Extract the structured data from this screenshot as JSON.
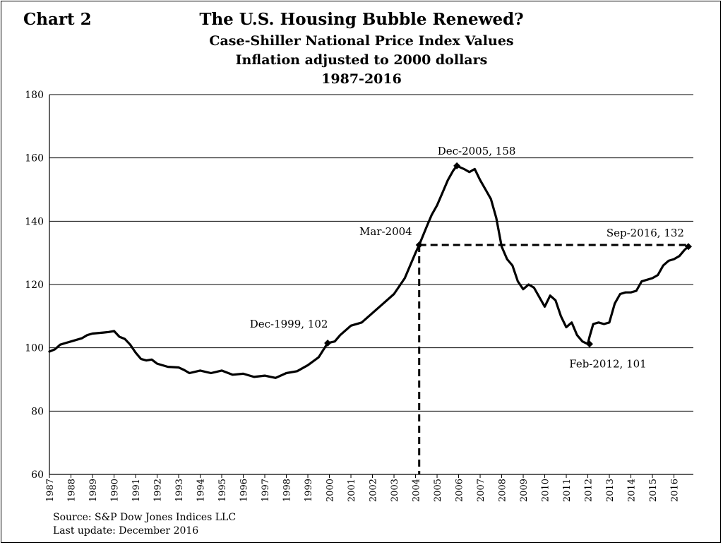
{
  "chart_label": "Chart 2",
  "footnote": {
    "source": "Source: S&P Dow Jones Indices LLC",
    "updated": "Last update: December 2016"
  },
  "chart_data": {
    "type": "line",
    "title": "The U.S. Housing Bubble Renewed?",
    "subtitle": [
      "Case-Shiller National Price Index Values",
      "Inflation adjusted to 2000 dollars",
      "1987-2016"
    ],
    "xlabel": "",
    "ylabel": "",
    "xlim": [
      1987,
      2016.9
    ],
    "ylim": [
      60,
      180
    ],
    "yticks": [
      60,
      80,
      100,
      120,
      140,
      160,
      180
    ],
    "xticks": [
      "1987",
      "1988",
      "1989",
      "1990",
      "1991",
      "1992",
      "1993",
      "1994",
      "1995",
      "1996",
      "1997",
      "1998",
      "1999",
      "2000",
      "2001",
      "2002",
      "2003",
      "2004",
      "2005",
      "2006",
      "2007",
      "2008",
      "2009",
      "2010",
      "2011",
      "2012",
      "2013",
      "2014",
      "2015",
      "2016"
    ],
    "grid": "horizontal",
    "line_color": "#000000",
    "series": [
      {
        "x": [
          1987,
          1987.25,
          1987.5,
          1987.75,
          1988,
          1988.5,
          1988.75,
          1989,
          1989.5,
          1989.75,
          1990,
          1990.25,
          1990.5,
          1990.75,
          1991,
          1991.25,
          1991.5,
          1991.75,
          1992,
          1992.5,
          1993,
          1993.25,
          1993.5,
          1994,
          1994.5,
          1995,
          1995.5,
          1996,
          1996.5,
          1997,
          1997.5,
          1998,
          1998.5,
          1999,
          1999.5,
          1999.92,
          2000.25,
          2000.5,
          2001,
          2001.5,
          2002,
          2002.5,
          2003,
          2003.5,
          2004,
          2004.17,
          2004.5,
          2004.75,
          2005,
          2005.25,
          2005.5,
          2005.75,
          2005.92,
          2006.25,
          2006.5,
          2006.75,
          2007,
          2007.25,
          2007.5,
          2007.75,
          2008,
          2008.25,
          2008.5,
          2008.75,
          2009,
          2009.25,
          2009.5,
          2009.75,
          2010,
          2010.25,
          2010.5,
          2010.75,
          2011,
          2011.25,
          2011.5,
          2011.75,
          2012,
          2012.08,
          2012.25,
          2012.5,
          2012.75,
          2013,
          2013.25,
          2013.5,
          2013.75,
          2014,
          2014.25,
          2014.5,
          2014.75,
          2015,
          2015.25,
          2015.5,
          2015.75,
          2016,
          2016.25,
          2016.5,
          2016.67
        ],
        "values": [
          98.8,
          99.5,
          101,
          101.5,
          102,
          103,
          104,
          104.5,
          104.8,
          105,
          105.3,
          103.5,
          102.8,
          101,
          98.5,
          96.5,
          96,
          96.3,
          95,
          94,
          93.8,
          93,
          92,
          92.8,
          92,
          92.8,
          91.5,
          91.8,
          90.8,
          91.2,
          90.5,
          92,
          92.6,
          94.5,
          97,
          101.5,
          102,
          104,
          107,
          108,
          111,
          114,
          117,
          122,
          130,
          132.5,
          138,
          142,
          145,
          149,
          153,
          156,
          157.5,
          156.5,
          155.5,
          156.5,
          153,
          150,
          147,
          141,
          132,
          128,
          126,
          121,
          118.5,
          120,
          119,
          116,
          113,
          116.5,
          115,
          110,
          106.5,
          108,
          104,
          102,
          101.2,
          103.5,
          107.5,
          108,
          107.5,
          108,
          114,
          117,
          117.5,
          117.5,
          118,
          121,
          121.5,
          122,
          123,
          126,
          127.5,
          128,
          129,
          131,
          132
        ]
      }
    ],
    "annotations": [
      {
        "label": "Dec-1999, 102",
        "x": 1999.92,
        "y": 101.5
      },
      {
        "label": "Mar-2004",
        "x": 2004.17,
        "y": 132.5
      },
      {
        "label": "Dec-2005, 158",
        "x": 2005.92,
        "y": 157.5
      },
      {
        "label": "Feb-2012, 101",
        "x": 2012.08,
        "y": 101.2
      },
      {
        "label": "Sep-2016, 132",
        "x": 2016.67,
        "y": 132
      }
    ],
    "reference_lines": {
      "from_x": 2004.17,
      "to_x": 2016.67,
      "y": 132.5
    }
  }
}
